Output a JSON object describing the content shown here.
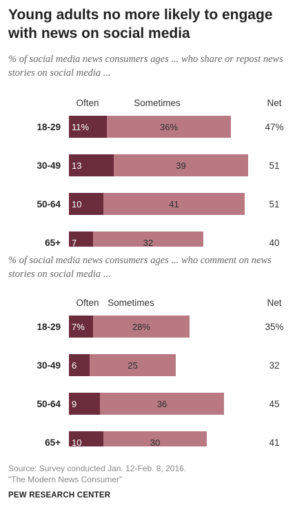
{
  "title": "Young adults no more likely to engage with news on social media",
  "colors": {
    "often": "#6b2c3c",
    "sometimes": "#b87983",
    "often_label": "#ffffff",
    "sometimes_label": "#2e2e2e"
  },
  "chart_data": [
    {
      "type": "bar",
      "stacked": true,
      "orientation": "horizontal",
      "subtitle": "% of social media news consumers ages ... who share or repost news stories on social media ...",
      "categories": [
        "18-29",
        "30-49",
        "50-64",
        "65+"
      ],
      "series": [
        {
          "name": "Often",
          "values": [
            11,
            13,
            10,
            7
          ],
          "labels": [
            "11%",
            "13",
            "10",
            "7"
          ]
        },
        {
          "name": "Sometimes",
          "values": [
            36,
            39,
            41,
            32
          ],
          "labels": [
            "36%",
            "39",
            "41",
            "32"
          ]
        }
      ],
      "net_header": "Net",
      "net": [
        "47%",
        "51",
        "51",
        "40"
      ]
    },
    {
      "type": "bar",
      "stacked": true,
      "orientation": "horizontal",
      "subtitle": "% of social media news consumers ages ... who comment on news stories on social media ...",
      "categories": [
        "18-29",
        "30-49",
        "50-64",
        "65+"
      ],
      "series": [
        {
          "name": "Often",
          "values": [
            7,
            6,
            9,
            10
          ],
          "labels": [
            "7%",
            "6",
            "9",
            "10"
          ]
        },
        {
          "name": "Sometimes",
          "values": [
            28,
            25,
            36,
            30
          ],
          "labels": [
            "28%",
            "25",
            "36",
            "30"
          ]
        }
      ],
      "net_header": "Net",
      "net": [
        "35%",
        "32",
        "45",
        "41"
      ]
    }
  ],
  "source": {
    "line1": "Source: Survey conducted Jan. 12-Feb. 8, 2016.",
    "line2": "\"The Modern News Consumer\""
  },
  "brand": "PEW RESEARCH CENTER"
}
